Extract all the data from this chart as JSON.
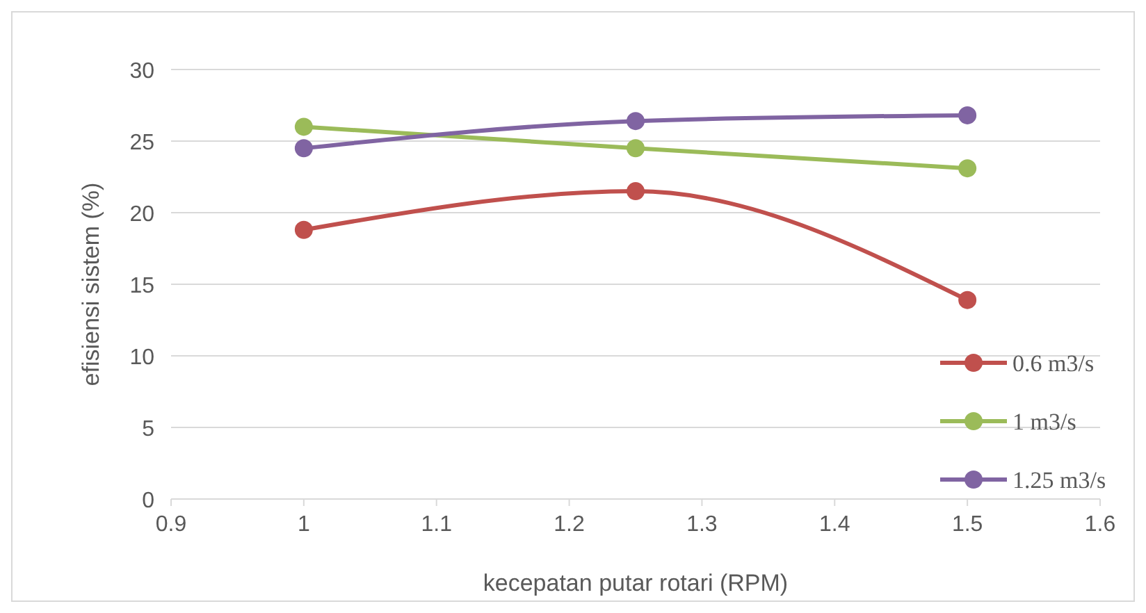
{
  "chart_data": {
    "type": "line",
    "xlabel": "kecepatan putar rotari (RPM)",
    "ylabel": "efisiensi sistem (%)",
    "x": [
      1,
      1.25,
      1.5
    ],
    "series": [
      {
        "name": "0.6 m3/s",
        "color": "#c0504d",
        "values": [
          18.8,
          21.5,
          13.9
        ]
      },
      {
        "name": "1 m3/s",
        "color": "#9bbb59",
        "values": [
          26.0,
          24.5,
          23.1
        ]
      },
      {
        "name": "1.25 m3/s",
        "color": "#8064a2",
        "values": [
          24.5,
          26.4,
          26.8
        ]
      }
    ],
    "xlim": [
      0.9,
      1.6
    ],
    "xticks": [
      0.9,
      1,
      1.1,
      1.2,
      1.3,
      1.4,
      1.5,
      1.6
    ],
    "ylim": [
      0,
      30
    ],
    "yticks": [
      0,
      5,
      10,
      15,
      20,
      25,
      30
    ],
    "grid": "y",
    "legend": "bottom right",
    "marker": "circle",
    "line_style": "solid"
  }
}
